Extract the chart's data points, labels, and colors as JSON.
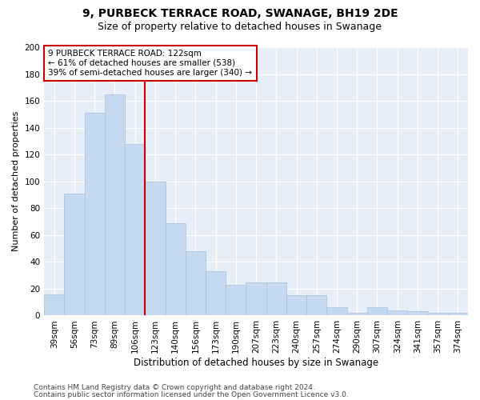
{
  "title1": "9, PURBECK TERRACE ROAD, SWANAGE, BH19 2DE",
  "title2": "Size of property relative to detached houses in Swanage",
  "xlabel": "Distribution of detached houses by size in Swanage",
  "ylabel": "Number of detached properties",
  "categories": [
    "39sqm",
    "56sqm",
    "73sqm",
    "89sqm",
    "106sqm",
    "123sqm",
    "140sqm",
    "156sqm",
    "173sqm",
    "190sqm",
    "207sqm",
    "223sqm",
    "240sqm",
    "257sqm",
    "274sqm",
    "290sqm",
    "307sqm",
    "324sqm",
    "341sqm",
    "357sqm",
    "374sqm"
  ],
  "values": [
    16,
    91,
    151,
    165,
    128,
    100,
    69,
    48,
    33,
    23,
    25,
    25,
    15,
    15,
    6,
    2,
    6,
    4,
    3,
    2,
    2
  ],
  "bar_color": "#c5d9f0",
  "bar_edge_color": "#aec6e0",
  "vline_index": 5,
  "vline_color": "#cc0000",
  "annotation_line1": "9 PURBECK TERRACE ROAD: 122sqm",
  "annotation_line2": "← 61% of detached houses are smaller (538)",
  "annotation_line3": "39% of semi-detached houses are larger (340) →",
  "annotation_box_facecolor": "#ffffff",
  "annotation_box_edgecolor": "#cc0000",
  "ylim": [
    0,
    200
  ],
  "yticks": [
    0,
    20,
    40,
    60,
    80,
    100,
    120,
    140,
    160,
    180,
    200
  ],
  "background_color": "#e8eef7",
  "footer1": "Contains HM Land Registry data © Crown copyright and database right 2024.",
  "footer2": "Contains public sector information licensed under the Open Government Licence v3.0.",
  "title1_fontsize": 10,
  "title2_fontsize": 9,
  "xlabel_fontsize": 8.5,
  "ylabel_fontsize": 8,
  "tick_fontsize": 7.5,
  "annotation_fontsize": 7.5,
  "footer_fontsize": 6.5
}
